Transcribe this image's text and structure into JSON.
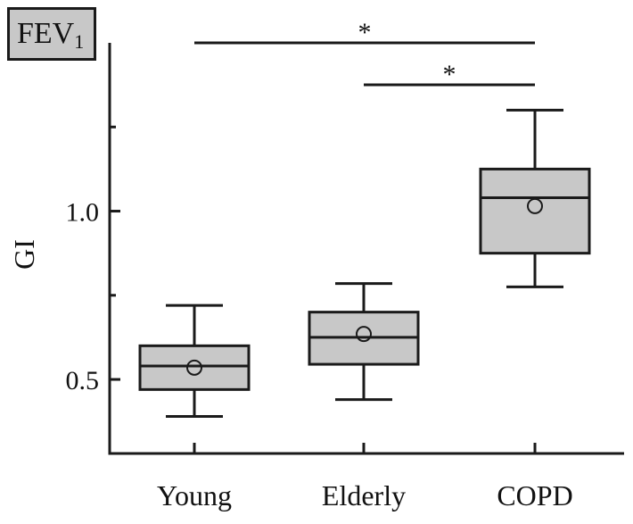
{
  "panel_label": {
    "main": "FEV",
    "subscript": "1"
  },
  "chart_data": {
    "type": "box",
    "categories": [
      "Young",
      "Elderly",
      "COPD"
    ],
    "ylabel": "GI",
    "ylim": [
      0.28,
      1.5
    ],
    "yticks": [
      0.5,
      1.0
    ],
    "ytick_labels": [
      "0.5",
      "1.0"
    ],
    "boxes": [
      {
        "category": "Young",
        "whisker_low": 0.39,
        "q1": 0.47,
        "median": 0.54,
        "q3": 0.6,
        "whisker_high": 0.72,
        "mean": 0.535
      },
      {
        "category": "Elderly",
        "whisker_low": 0.44,
        "q1": 0.545,
        "median": 0.625,
        "q3": 0.7,
        "whisker_high": 0.785,
        "mean": 0.635
      },
      {
        "category": "COPD",
        "whisker_low": 0.775,
        "q1": 0.875,
        "median": 1.04,
        "q3": 1.125,
        "whisker_high": 1.3,
        "mean": 1.015
      }
    ],
    "significance": [
      {
        "from": "Young",
        "to": "COPD",
        "label": "*"
      },
      {
        "from": "Elderly",
        "to": "COPD",
        "label": "*"
      }
    ],
    "colors": {
      "box_fill": "#c8c8c8",
      "stroke": "#1a1a1a"
    },
    "grid": false,
    "legend": "none"
  }
}
